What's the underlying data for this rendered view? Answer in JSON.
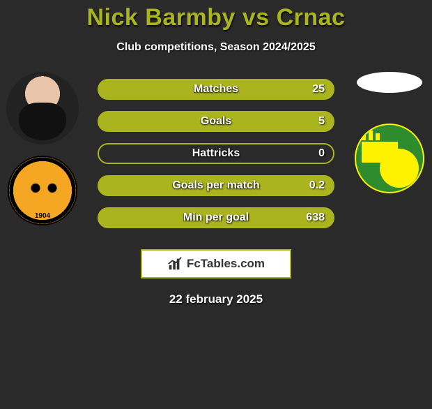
{
  "title": "Nick Barmby vs Crnac",
  "title_color": "#aab41e",
  "subtitle": "Club competitions, Season 2024/2025",
  "date_text": "22 february 2025",
  "background_color": "#2a2a2a",
  "brand": {
    "label": "FcTables.com"
  },
  "left_player": {
    "name": "Nick Barmby",
    "team": "Hull City",
    "badge_year": "1904"
  },
  "right_player": {
    "name": "Crnac",
    "team": "Norwich City"
  },
  "colors": {
    "bar_border": "#aab41e",
    "player1_fill": "#aab41e",
    "player2_fill": "#7abfff",
    "label_text": "#ffffff"
  },
  "stats": [
    {
      "label": "Matches",
      "p1": 0,
      "p2": 25,
      "p1_disp": "",
      "p2_disp": "25",
      "p1_pct": 0,
      "p2_pct": 100,
      "mode": "solid"
    },
    {
      "label": "Goals",
      "p1": 0,
      "p2": 5,
      "p1_disp": "",
      "p2_disp": "5",
      "p1_pct": 0,
      "p2_pct": 100,
      "mode": "solid"
    },
    {
      "label": "Hattricks",
      "p1": 0,
      "p2": 0,
      "p1_disp": "",
      "p2_disp": "0",
      "p1_pct": 0,
      "p2_pct": 0,
      "mode": "outline"
    },
    {
      "label": "Goals per match",
      "p1": 0,
      "p2": 0.2,
      "p1_disp": "",
      "p2_disp": "0.2",
      "p1_pct": 0,
      "p2_pct": 100,
      "mode": "solid"
    },
    {
      "label": "Min per goal",
      "p1": 0,
      "p2": 638,
      "p1_disp": "",
      "p2_disp": "638",
      "p1_pct": 0,
      "p2_pct": 100,
      "mode": "solid"
    }
  ],
  "typography": {
    "title_fontsize": 34,
    "subtitle_fontsize": 16,
    "bar_label_fontsize": 16,
    "date_fontsize": 17
  }
}
